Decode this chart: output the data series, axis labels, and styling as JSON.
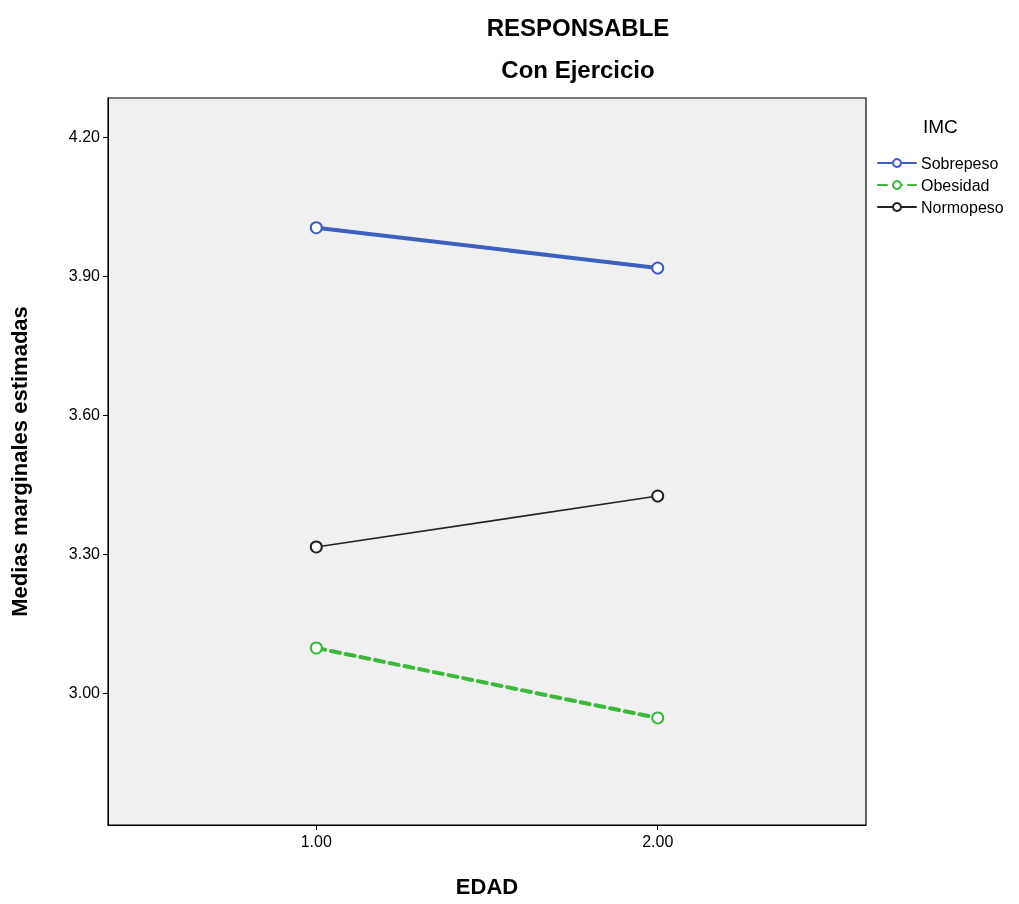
{
  "chart_data": {
    "type": "line",
    "title": "RESPONSABLE",
    "subtitle": "Con Ejercicio",
    "xlabel": "EDAD",
    "ylabel": "Medias marginales estimadas",
    "legend_title": "IMC",
    "x": [
      1,
      2
    ],
    "series": [
      {
        "name": "Sobrepeso",
        "color": "#3f5fbf",
        "values": [
          4.004,
          3.917
        ],
        "line_style": "solid"
      },
      {
        "name": "Obesidad",
        "color": "#3cb93c",
        "values": [
          3.097,
          2.946
        ],
        "line_style": "dashed"
      },
      {
        "name": "Normopeso",
        "color": "#222222",
        "values": [
          3.315,
          3.425
        ],
        "line_style": "solid"
      }
    ],
    "xlim": [
      0.39,
      2.61
    ],
    "xticks": [
      {
        "value": 1,
        "label": "1.00"
      },
      {
        "value": 2,
        "label": "2.00"
      }
    ],
    "ylim": [
      2.715,
      4.284
    ],
    "yticks": [
      {
        "value": 3.0,
        "label": "3.00"
      },
      {
        "value": 3.3,
        "label": "3.30"
      },
      {
        "value": 3.6,
        "label": "3.60"
      },
      {
        "value": 3.9,
        "label": "3.90"
      },
      {
        "value": 4.2,
        "label": "4.20"
      }
    ],
    "grid": false,
    "legend": "top right",
    "marker": "circle"
  }
}
